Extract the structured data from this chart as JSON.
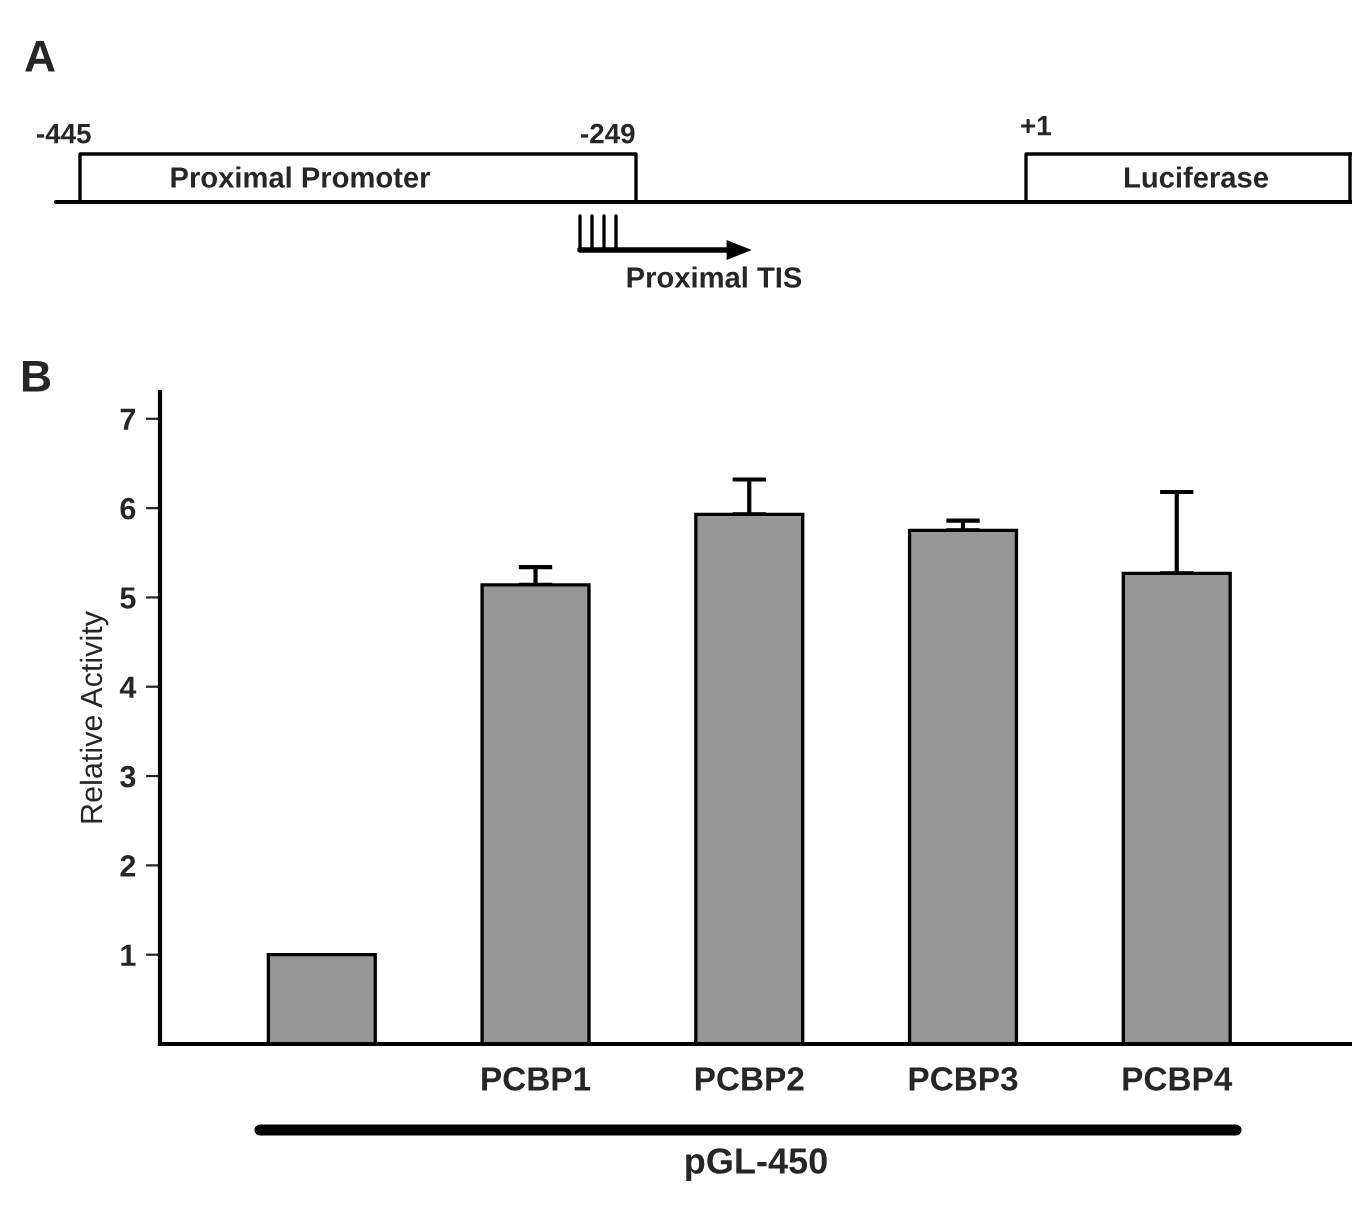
{
  "chart_data": [
    {
      "type": "other",
      "annotations": [
        "A",
        "-445",
        "Proximal Promoter",
        "-249",
        "+1",
        "Luciferase",
        "Proximal TIS"
      ]
    },
    {
      "type": "bar",
      "annotations": [
        "B"
      ],
      "ylabel": "Relative Activity",
      "xlabel": "pGL-450",
      "categories": [
        null,
        "PCBP1",
        "PCBP2",
        "PCBP3",
        "PCBP4"
      ],
      "values": [
        1.0,
        5.14,
        5.93,
        5.75,
        5.27
      ],
      "errors": [
        null,
        [
          5.14,
          5.34
        ],
        [
          5.93,
          6.32
        ],
        [
          5.75,
          5.86
        ],
        [
          5.27,
          6.18
        ]
      ],
      "color": "#969696",
      "ylim": [
        0,
        7.3
      ],
      "yticks": [
        1,
        2,
        3,
        4,
        5,
        6,
        7
      ],
      "grid": false,
      "legend": false
    }
  ]
}
